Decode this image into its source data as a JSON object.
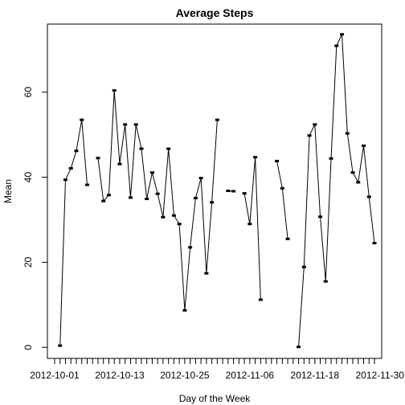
{
  "chart_data": {
    "type": "line",
    "title": "Average Steps",
    "xlabel": "Day of the Week",
    "ylabel": "Mean",
    "x_tick_labels": [
      "2012-10-01",
      "2012-10-13",
      "2012-10-25",
      "2012-11-06",
      "2012-11-18",
      "2012-11-30"
    ],
    "y_ticks": [
      0,
      20,
      40,
      60
    ],
    "ylim": [
      -2.6,
      76.0
    ],
    "x": [
      "2012-10-01",
      "2012-10-02",
      "2012-10-03",
      "2012-10-04",
      "2012-10-05",
      "2012-10-06",
      "2012-10-07",
      "2012-10-08",
      "2012-10-09",
      "2012-10-10",
      "2012-10-11",
      "2012-10-12",
      "2012-10-13",
      "2012-10-14",
      "2012-10-15",
      "2012-10-16",
      "2012-10-17",
      "2012-10-18",
      "2012-10-19",
      "2012-10-20",
      "2012-10-21",
      "2012-10-22",
      "2012-10-23",
      "2012-10-24",
      "2012-10-25",
      "2012-10-26",
      "2012-10-27",
      "2012-10-28",
      "2012-10-29",
      "2012-10-30",
      "2012-10-31",
      "2012-11-01",
      "2012-11-02",
      "2012-11-03",
      "2012-11-04",
      "2012-11-05",
      "2012-11-06",
      "2012-11-07",
      "2012-11-08",
      "2012-11-09",
      "2012-11-10",
      "2012-11-11",
      "2012-11-12",
      "2012-11-13",
      "2012-11-14",
      "2012-11-15",
      "2012-11-16",
      "2012-11-17",
      "2012-11-18",
      "2012-11-19",
      "2012-11-20",
      "2012-11-21",
      "2012-11-22",
      "2012-11-23",
      "2012-11-24",
      "2012-11-25",
      "2012-11-26",
      "2012-11-27",
      "2012-11-28",
      "2012-11-29"
    ],
    "values": [
      null,
      0.4,
      39.4,
      42.1,
      46.2,
      53.5,
      38.2,
      null,
      44.5,
      34.4,
      35.8,
      60.4,
      43.1,
      52.4,
      35.2,
      52.4,
      46.7,
      34.9,
      41.1,
      36.1,
      30.6,
      46.7,
      31.0,
      29.0,
      8.7,
      23.5,
      35.1,
      39.8,
      17.4,
      34.1,
      53.5,
      null,
      36.8,
      36.7,
      null,
      36.2,
      29.0,
      44.7,
      11.2,
      null,
      null,
      43.8,
      37.4,
      25.5,
      null,
      0.1,
      18.9,
      49.8,
      52.4,
      30.7,
      15.5,
      44.4,
      70.9,
      73.6,
      50.3,
      41.1,
      38.8,
      47.4,
      35.4,
      24.5
    ]
  }
}
